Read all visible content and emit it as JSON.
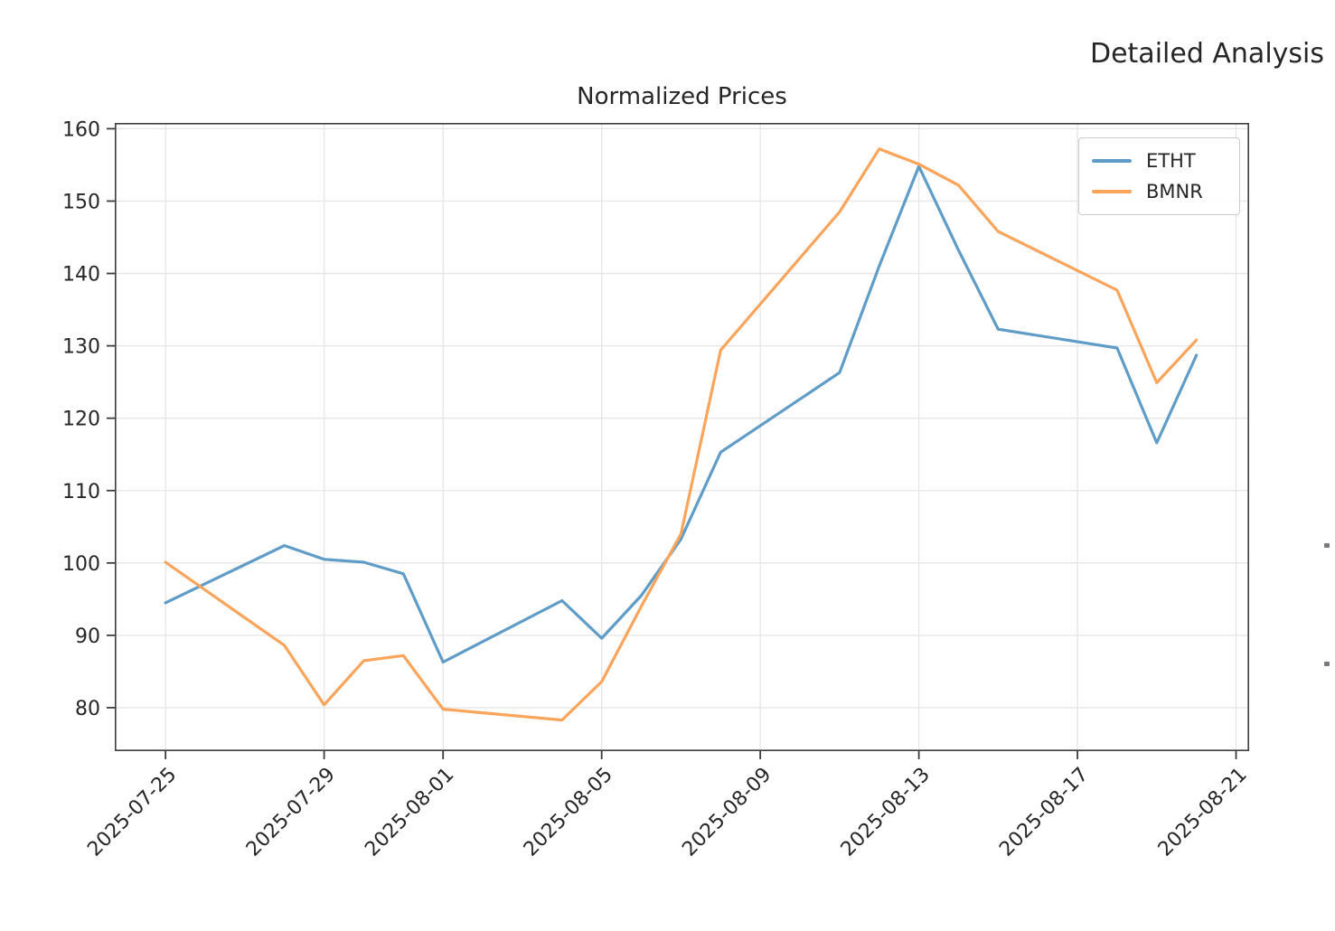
{
  "figure": {
    "right_title": "Detailed Analysis"
  },
  "chart_data": {
    "type": "line",
    "title": "Normalized Prices",
    "x": [
      "2025-07-25",
      "2025-07-28",
      "2025-07-29",
      "2025-07-30",
      "2025-07-31",
      "2025-08-01",
      "2025-08-04",
      "2025-08-05",
      "2025-08-06",
      "2025-08-07",
      "2025-08-08",
      "2025-08-11",
      "2025-08-12",
      "2025-08-13",
      "2025-08-14",
      "2025-08-15",
      "2025-08-18",
      "2025-08-19",
      "2025-08-20"
    ],
    "series": [
      {
        "name": "ETHT",
        "color": "#5f9cc8",
        "values": [
          94.5,
          102.4,
          100.5,
          100.1,
          98.5,
          86.3,
          94.8,
          89.6,
          95.5,
          103.3,
          115.3,
          126.3,
          141.0,
          154.8,
          143.2,
          132.3,
          129.7,
          116.6,
          128.7
        ]
      },
      {
        "name": "BMNR",
        "color": "#fba45c",
        "values": [
          100.1,
          88.6,
          80.4,
          86.5,
          87.2,
          79.8,
          78.3,
          83.6,
          94.0,
          104.0,
          129.4,
          148.5,
          157.2,
          155.1,
          152.2,
          145.8,
          137.7,
          124.9,
          130.8
        ]
      }
    ],
    "xticks": [
      "2025-07-25",
      "2025-07-29",
      "2025-08-01",
      "2025-08-05",
      "2025-08-09",
      "2025-08-13",
      "2025-08-17",
      "2025-08-21"
    ],
    "yticks": [
      80,
      90,
      100,
      110,
      120,
      130,
      140,
      150,
      160
    ],
    "ylim": [
      74.0,
      160.8
    ],
    "xlim_days": [
      -1.28,
      27.33
    ],
    "grid": true,
    "legend_position": "upper right",
    "colors": {
      "grid": "#e6e6e6",
      "spine": "#3d3d3d",
      "text": "#262626"
    }
  }
}
